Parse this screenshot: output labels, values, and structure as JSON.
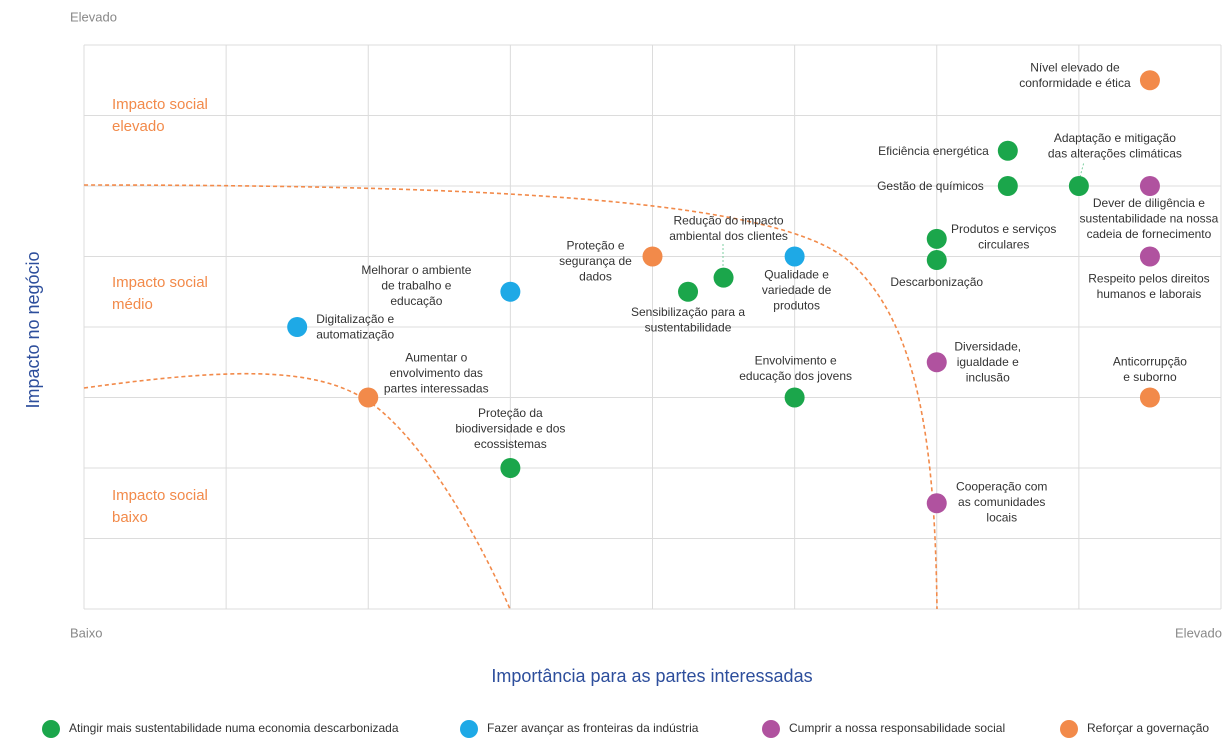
{
  "chart_data": {
    "type": "scatter",
    "y_axis_label": "Impacto no negócio",
    "x_axis_label": "Importância para as partes interessadas",
    "y_high_label": "Elevado",
    "x_low_label": "Baixo",
    "x_high_label": "Elevado",
    "zones": [
      [
        "Impacto social",
        "elevado"
      ],
      [
        "Impacto social",
        "médio"
      ],
      [
        "Impacto social",
        "baixo"
      ]
    ],
    "xlim": [
      0,
      8
    ],
    "ylim": [
      0,
      8
    ],
    "xticks": [
      0,
      1,
      2,
      3,
      4,
      5,
      6,
      7,
      8
    ],
    "yticks": [
      0,
      1,
      2,
      3,
      4,
      5,
      6,
      7,
      8
    ],
    "grid": true,
    "legend": "bottom",
    "series": [
      {
        "name": "Atingir mais sustentabilidade numa economia descarbonizada",
        "color": "#1ba64b",
        "points": [
          {
            "x": 6.5,
            "y": 6.5,
            "label": [
              "Eficiência energética"
            ]
          },
          {
            "x": 6.5,
            "y": 6.0,
            "label": [
              "Gestão de químicos"
            ]
          },
          {
            "x": 7.0,
            "y": 6.0,
            "label": [
              "Adaptação e mitigação",
              "das alterações climáticas"
            ]
          },
          {
            "x": 6.0,
            "y": 5.25,
            "label": [
              "Produtos e serviços",
              "circulares"
            ]
          },
          {
            "x": 6.0,
            "y": 4.95,
            "label": [
              "Descarbonização"
            ]
          },
          {
            "x": 4.5,
            "y": 4.7,
            "label": [
              "Redução do impacto",
              "ambiental dos clientes"
            ]
          },
          {
            "x": 4.25,
            "y": 4.5,
            "label": [
              "Sensibilização para a",
              "sustentabilidade"
            ]
          },
          {
            "x": 3.0,
            "y": 2.0,
            "label": [
              "Proteção da",
              "biodiversidade e dos",
              "ecossistemas"
            ]
          },
          {
            "x": 5.0,
            "y": 3.0,
            "label": [
              "Envolvimento e",
              "educação dos jovens"
            ]
          }
        ]
      },
      {
        "name": "Fazer avançar as fronteiras da indústria",
        "color": "#1ea9e6",
        "points": [
          {
            "x": 5.0,
            "y": 5.0,
            "label": [
              "Qualidade e",
              "variedade de",
              "produtos"
            ]
          },
          {
            "x": 3.0,
            "y": 4.5,
            "label": [
              "Melhorar o ambiente",
              "de trabalho e",
              "educação"
            ]
          },
          {
            "x": 1.5,
            "y": 4.0,
            "label": [
              "Digitalização e",
              "automatização"
            ]
          }
        ]
      },
      {
        "name": "Cumprir a nossa responsabilidade social",
        "color": "#b0529f",
        "points": [
          {
            "x": 7.5,
            "y": 6.0,
            "label": [
              "Dever de diligência e",
              "sustentabilidade na nossa",
              "cadeia de fornecimento"
            ]
          },
          {
            "x": 7.5,
            "y": 5.0,
            "label": [
              "Respeito pelos direitos",
              "humanos e laborais"
            ]
          },
          {
            "x": 6.0,
            "y": 3.5,
            "label": [
              "Diversidade,",
              "igualdade e",
              "inclusão"
            ]
          },
          {
            "x": 6.0,
            "y": 1.5,
            "label": [
              "Cooperação com",
              "as comunidades",
              "locais"
            ]
          }
        ]
      },
      {
        "name": "Reforçar a governação",
        "color": "#f28a4a",
        "points": [
          {
            "x": 7.5,
            "y": 7.5,
            "label": [
              "Nível elevado de",
              "conformidade e ética"
            ]
          },
          {
            "x": 4.0,
            "y": 5.0,
            "label": [
              "Proteção e",
              "segurança de",
              "dados"
            ]
          },
          {
            "x": 2.0,
            "y": 3.0,
            "label": [
              "Aumentar o",
              "envolvimento das",
              "partes interessadas"
            ]
          },
          {
            "x": 7.5,
            "y": 3.0,
            "label": [
              "Anticorrupção",
              "e suborno"
            ]
          }
        ]
      }
    ]
  }
}
